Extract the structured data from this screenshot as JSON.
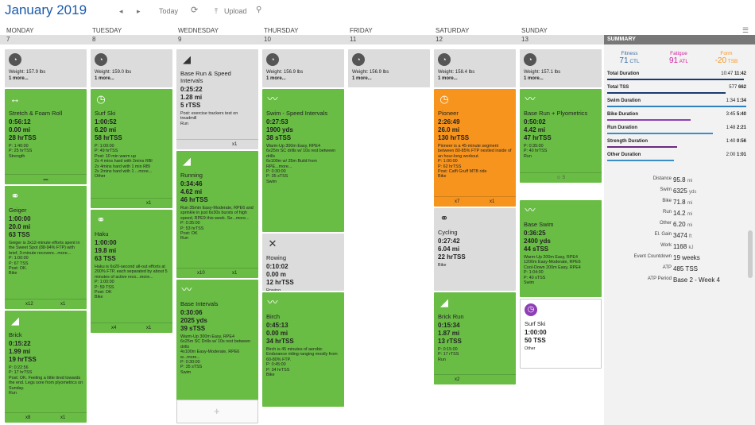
{
  "header": {
    "title": "January 2019",
    "prev": "◂",
    "next": "▸",
    "today": "Today",
    "refresh": "⟳",
    "upload": "Upload",
    "search": "⚲"
  },
  "days": [
    "MONDAY",
    "TUESDAY",
    "WEDNESDAY",
    "THURSDAY",
    "FRIDAY",
    "SATURDAY",
    "SUNDAY"
  ],
  "dates": [
    "7",
    "8",
    "9",
    "10",
    "11",
    "12",
    "13"
  ],
  "cards": [
    {
      "id": "c0",
      "w": "Weight: 157.9 lbs",
      "m": "1 more..."
    },
    {
      "id": "c1",
      "n": "Stretch & Foam Roll",
      "a": "0:56:12",
      "b": "0.00 mi",
      "c": "28 hrTSS",
      "s": "P: 1:40:00\nP: 25 hrTSS\nStrength",
      "f": "▬"
    },
    {
      "id": "c2",
      "n": "Geiger",
      "a": "1:00:00",
      "b": "20.0 mi",
      "c": "63 TSS",
      "s": "Geiger is 3x12-minute efforts spent in the Sweet Spot (88-94% FTP) with brief, 3-minute recovere...more...\nP: 1:00:00\nP: 67 TSS\nPost: OK.\nBike",
      "fl": "x12",
      "fr": "x1"
    },
    {
      "id": "c3",
      "n": "Brick",
      "a": "0:15:22",
      "b": "1.99 mi",
      "c": "19 hrTSS",
      "s": "P: 0:22:56\nP: 17 hrTSS\nPost: OK. Feeling a little tired towards the end. Legs sore from plyometrics on Sunday.\nRun",
      "fl": "x8",
      "fr": "x1"
    },
    {
      "id": "c4",
      "w": "Weight: 159.0 lbs",
      "m": "1 more..."
    },
    {
      "id": "c5",
      "n": "Surf Ski",
      "a": "1:00:52",
      "b": "6.20 mi",
      "c": "58 hrTSS",
      "s": "P: 1:00:00\nP: 49 hrTSS\nPost: 10 min warm up\n2x 4 mins hard with 2mins RBI\n2x 4mins hard with 1 min RBI\n2x 2mins hard with 1 ...more...\nOther",
      "fr": "x1"
    },
    {
      "id": "c6",
      "n": "Haku",
      "a": "1:00:00",
      "b": "19.8 mi",
      "c": "63 TSS",
      "s": "Haku is 6x20-second all-out efforts at 200% FTP, each separated by about 5 minutes of active reco...more...\nP: 1:00:00\nP: 59 TSS\nPost: OK\nBike",
      "fl": "x4",
      "fr": "x1"
    },
    {
      "id": "c7",
      "n": "Base Run & Speed Intervals",
      "a": "0:25:22",
      "b": "1.28 mi",
      "c": "5 rTSS",
      "s": "Post: exercise trackers test on treadmill\nRun",
      "fr": "x1"
    },
    {
      "id": "c8",
      "n": "Running",
      "a": "0:34:46",
      "b": "4.62 mi",
      "c": "46 hrTSS",
      "s": "Run 35min Easy-Moderate, RPE6 and sprinkle in just 6x30s bursts of high speed, RPE9 this week. Se...more...\nP: 0:35:00\nP: 53 hrTSS\nPost: OK\nRun",
      "fl": "x10",
      "fr": "x1"
    },
    {
      "id": "c9",
      "n": "Base Intervals",
      "a": "0:30:06",
      "b": "2025 yds",
      "c": "39 sTSS",
      "s": "Warm-Up 300m Easy, RPE4\n6x25m SC Drills w/ 10s rest between drills\n4x100m Easy-Moderate, RPE6 w...more...\nP: 0:30:00\nP: 35 sTSS\nSwim"
    },
    {
      "id": "c10",
      "w": "Weight: 156.9 lbs",
      "m": "1 more..."
    },
    {
      "id": "c11",
      "n": "Swim - Speed Intervals",
      "a": "0:27:53",
      "b": "1900 yds",
      "c": "38 sTSS",
      "s": "Warm-Up 300m Easy, RPE4\n6x25m SC drills w/ 10s rest between drills\n6x100m w/ 25m Build from RPE...more...\nP: 0:30:00\nP: 35 sTSS\nSwim"
    },
    {
      "id": "c12",
      "n": "Rowing",
      "a": "0:10:02",
      "b": "0.00 m",
      "c": "12 hrTSS",
      "s": "Rowing"
    },
    {
      "id": "c13",
      "n": "Birch",
      "a": "0:45:13",
      "b": "0.00 mi",
      "c": "34 hrTSS",
      "s": "Birch is 45 minutes of aerobic Endurance riding ranging mostly from 60-80% FTP.\nP: 0:45:00\nP: 34 hrTSS\nBike"
    },
    {
      "id": "c14",
      "w": "Weight: 156.9 lbs",
      "m": "1 more..."
    },
    {
      "id": "c15",
      "w": "Weight: 158.4 lbs",
      "m": "1 more..."
    },
    {
      "id": "c16",
      "n": "Pioneer",
      "a": "2:26:49",
      "b": "26.0 mi",
      "c": "130 hrTSS",
      "s": "Pioneer is a 45-minute segment between 80-85% FTP nestled inside of an hour-long workout.\nP: 1:00:00\nP: 62 hrTSS\nPost: Caffi Gruff MTB ride\nBike",
      "fl": "x7",
      "fr": "x1"
    },
    {
      "id": "c17",
      "n": "Cycling",
      "a": "0:27:42",
      "b": "6.04 mi",
      "c": "22 hrTSS",
      "s": "Bike"
    },
    {
      "id": "c18",
      "n": "Brick Run",
      "a": "0:15:34",
      "b": "1.87 mi",
      "c": "13 rTSS",
      "s": "P: 0:15:00\nP: 17 rTSS\nRun",
      "fl": "x2"
    },
    {
      "id": "c19",
      "w": "Weight: 157.1 lbs",
      "m": "1 more..."
    },
    {
      "id": "c20",
      "n": "Base Run + Plyometrics",
      "a": "0:50:02",
      "b": "4.42 mi",
      "c": "47 hrTSS",
      "s": "P: 0:35:00\nP: 40 hrTSS\nRun",
      "f": "☺ 5"
    },
    {
      "id": "c21",
      "n": "Base Swim",
      "a": "0:36:25",
      "b": "2400 yds",
      "c": "44 sTSS",
      "s": "Warm-Up 200m Easy, RPE4\n1200m Easy-Moderate, RPE6\nCool-Down 200m Easy, RPE4\nP: 1:04:00\nP: 40 sTSS\nSwim"
    },
    {
      "id": "c22",
      "n": "Surf Ski",
      "a": "1:00:00",
      "b": "50 TSS",
      "c": "",
      "s": "Other"
    }
  ],
  "summary": {
    "title": "SUMMARY",
    "fitness": {
      "label": "Fitness",
      "val": "71",
      "unit": "CTL"
    },
    "fatigue": {
      "label": "Fatigue",
      "val": "91",
      "unit": "ATL"
    },
    "form": {
      "label": "Form",
      "val": "-20",
      "unit": "TSB"
    },
    "rows": [
      {
        "k": "Total Duration",
        "p": "10:47",
        "v": "11:42"
      },
      {
        "k": "Total TSS",
        "p": "577",
        "v": "662"
      },
      {
        "k": "Swim Duration",
        "p": "1:34",
        "v": "1:34"
      },
      {
        "k": "Bike Duration",
        "p": "3:45",
        "v": "5:40"
      },
      {
        "k": "Run Duration",
        "p": "1:48",
        "v": "2:21"
      },
      {
        "k": "Strength Duration",
        "p": "1:40",
        "v": "0:56"
      },
      {
        "k": "Other Duration",
        "p": "2:00",
        "v": "1:01"
      }
    ],
    "stats": [
      {
        "k": "Distance",
        "v": "95.8",
        "u": "mi"
      },
      {
        "k": "Swim",
        "v": "6325",
        "u": "yds"
      },
      {
        "k": "Bike",
        "v": "71.8",
        "u": "mi"
      },
      {
        "k": "Run",
        "v": "14.2",
        "u": "mi"
      },
      {
        "k": "Other",
        "v": "6.20",
        "u": "mi"
      },
      {
        "k": "El. Gain",
        "v": "3474",
        "u": "ft"
      },
      {
        "k": "Work",
        "v": "1168",
        "u": "kJ"
      },
      {
        "k": "Event Countdown",
        "v": "19 weeks",
        "u": ""
      },
      {
        "k": "ATP",
        "v": "485 TSS",
        "u": ""
      },
      {
        "k": "ATP Period",
        "v": "Base 2 - Week 4",
        "u": ""
      }
    ]
  }
}
